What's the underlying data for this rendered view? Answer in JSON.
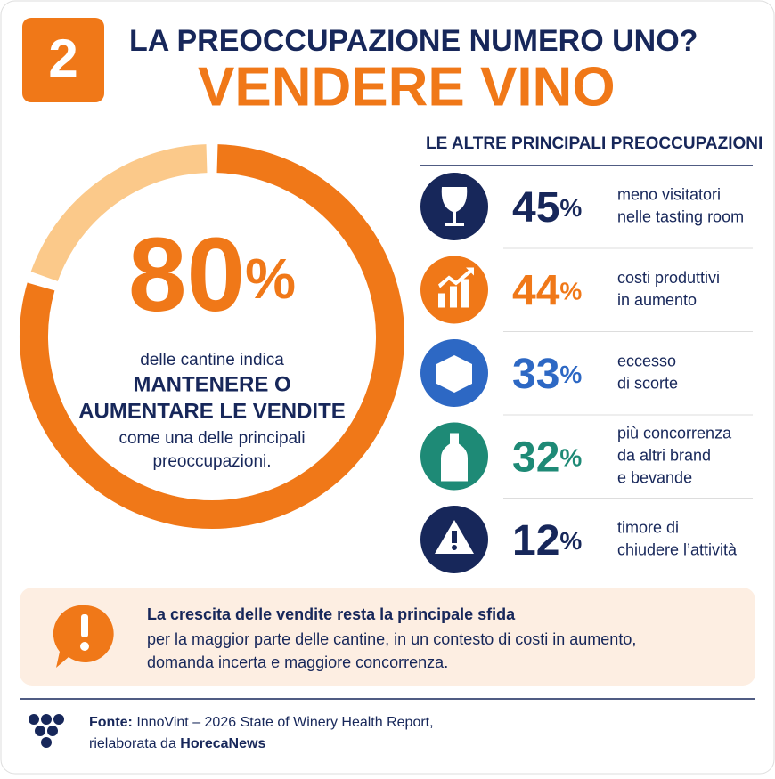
{
  "header": {
    "number": "2",
    "title": "LA PREOCCUPAZIONE NUMERO UNO?",
    "highlight": "VENDERE VINO"
  },
  "main": {
    "value": 80,
    "unit": "%",
    "lines": [
      "delle cantine indica",
      "MANTENERE O",
      "AUMENTARE LE VENDITE",
      "come una delle principali",
      "preoccupazioni."
    ]
  },
  "list": {
    "heading": "LE ALTRE PRINCIPALI PREOCCUPAZIONI",
    "items": [
      {
        "value": 45,
        "unit": "%",
        "color": "#17275a",
        "lines": [
          "meno visitatori",
          "nelle tasting room"
        ]
      },
      {
        "value": 44,
        "unit": "%",
        "color": "#f07818",
        "lines": [
          "costi produttivi",
          "in aumento"
        ]
      },
      {
        "value": 33,
        "unit": "%",
        "color": "#2d68c4",
        "lines": [
          "eccesso",
          "di scorte"
        ]
      },
      {
        "value": 32,
        "unit": "%",
        "color": "#1e8a76",
        "lines": [
          "più concorrenza",
          "da altri brand",
          "e bevande"
        ]
      },
      {
        "value": 12,
        "unit": "%",
        "color": "#17275a",
        "lines": [
          "timore di",
          "chiudere l’attività"
        ]
      }
    ]
  },
  "note": {
    "title": "La crescita delle vendite resta la principale sfida",
    "lines": [
      "per la maggior parte delle cantine, in un contesto di costi in aumento,",
      "domanda incerta e maggiore concorrenza."
    ]
  },
  "source": {
    "label": "Fonte:",
    "text": " InnoVint – 2026 State of Winery Health Report,",
    "prefix": "rielaborata da ",
    "brand": "HorecaNews"
  }
}
